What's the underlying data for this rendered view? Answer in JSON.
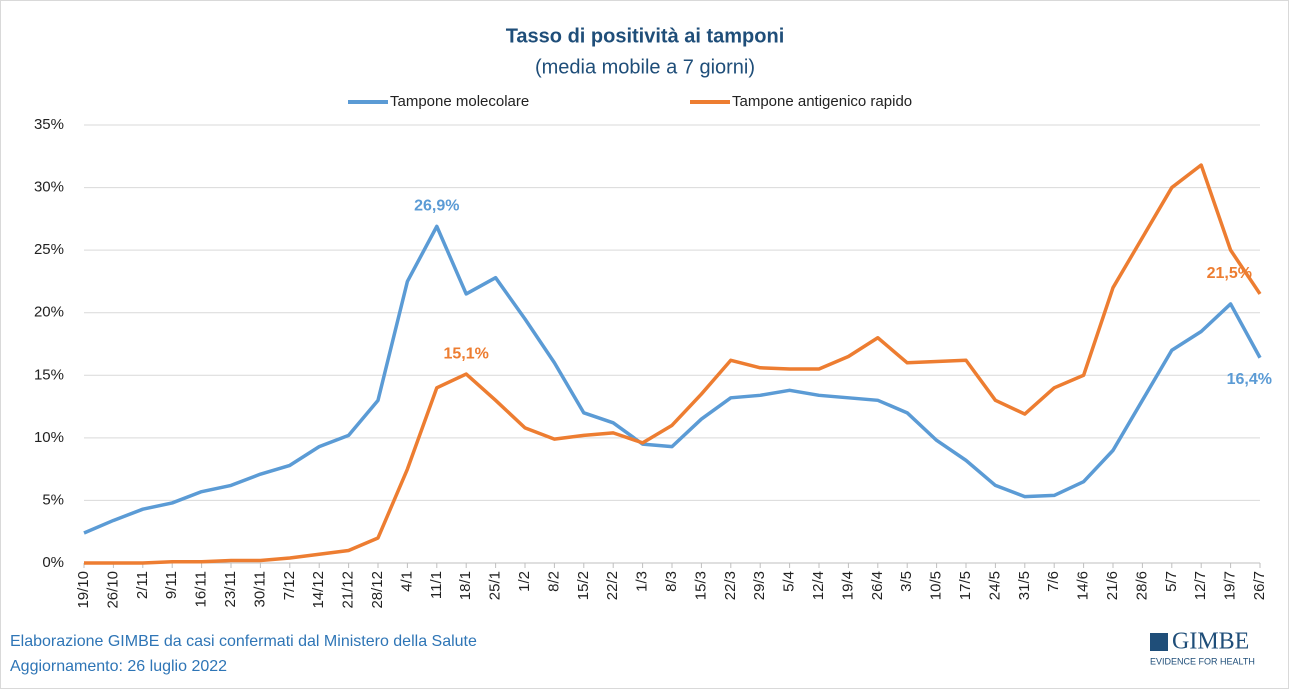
{
  "chart_data": {
    "type": "line",
    "title": "Tasso di positività ai tamponi",
    "subtitle": "(media mobile a 7 giorni)",
    "categories": [
      "19/10",
      "26/10",
      "2/11",
      "9/11",
      "16/11",
      "23/11",
      "30/11",
      "7/12",
      "14/12",
      "21/12",
      "28/12",
      "4/1",
      "11/1",
      "18/1",
      "25/1",
      "1/2",
      "8/2",
      "15/2",
      "22/2",
      "1/3",
      "8/3",
      "15/3",
      "22/3",
      "29/3",
      "5/4",
      "12/4",
      "19/4",
      "26/4",
      "3/5",
      "10/5",
      "17/5",
      "24/5",
      "31/5",
      "7/6",
      "14/6",
      "21/6",
      "28/6",
      "5/7",
      "12/7",
      "19/7",
      "26/7"
    ],
    "series": [
      {
        "name": "Tampone molecolare",
        "color": "#5b9bd5",
        "values": [
          2.4,
          3.4,
          4.3,
          4.8,
          5.7,
          6.2,
          7.1,
          7.8,
          9.3,
          10.2,
          13.0,
          22.5,
          26.9,
          21.5,
          22.8,
          19.5,
          16.0,
          12.0,
          11.2,
          9.5,
          9.3,
          11.5,
          13.2,
          13.4,
          13.8,
          13.4,
          13.2,
          13.0,
          12.0,
          9.8,
          8.2,
          6.2,
          5.3,
          5.4,
          6.5,
          9.0,
          13.0,
          17.0,
          18.5,
          20.7,
          16.4
        ],
        "value_labels": [
          null,
          null,
          null,
          null,
          null,
          null,
          null,
          null,
          null,
          null,
          null,
          null,
          "26,9%",
          null,
          null,
          null,
          null,
          null,
          null,
          null,
          null,
          null,
          null,
          null,
          null,
          null,
          null,
          null,
          null,
          null,
          null,
          null,
          null,
          null,
          null,
          null,
          null,
          null,
          null,
          null,
          "16,4%"
        ]
      },
      {
        "name": "Tampone antigenico rapido",
        "color": "#ed7d31",
        "values": [
          0,
          0,
          0,
          0.1,
          0.1,
          0.2,
          0.2,
          0.4,
          0.7,
          1.0,
          2.0,
          7.5,
          14.0,
          15.1,
          13.0,
          10.8,
          9.9,
          10.2,
          10.4,
          9.6,
          11.0,
          13.5,
          16.2,
          15.6,
          15.5,
          15.5,
          16.5,
          18.0,
          16.0,
          16.1,
          16.2,
          13.0,
          11.9,
          14.0,
          15.0,
          22.0,
          26.0,
          30.0,
          31.8,
          25.0,
          21.5
        ],
        "value_labels": [
          null,
          null,
          null,
          null,
          null,
          null,
          null,
          null,
          null,
          null,
          null,
          null,
          null,
          "15,1%",
          null,
          null,
          null,
          null,
          null,
          null,
          null,
          null,
          null,
          null,
          null,
          null,
          null,
          null,
          null,
          null,
          null,
          null,
          null,
          null,
          null,
          null,
          null,
          null,
          null,
          null,
          "21,5%"
        ]
      }
    ],
    "ylim": [
      0,
      35
    ],
    "yticks": [
      {
        "value": 0,
        "label": "0%"
      },
      {
        "value": 5,
        "label": "5%"
      },
      {
        "value": 10,
        "label": "10%"
      },
      {
        "value": 15,
        "label": "15%"
      },
      {
        "value": 20,
        "label": "20%"
      },
      {
        "value": 25,
        "label": "25%"
      },
      {
        "value": 30,
        "label": "30%"
      },
      {
        "value": 35,
        "label": "35%"
      }
    ],
    "grid": true,
    "legend": "top",
    "source": "Elaborazione GIMBE da casi confermati dal Ministero della Salute",
    "updated": "Aggiornamento: 26 luglio 2022",
    "logo": "GIMBE",
    "logo_tagline": "EVIDENCE FOR HEALTH"
  }
}
